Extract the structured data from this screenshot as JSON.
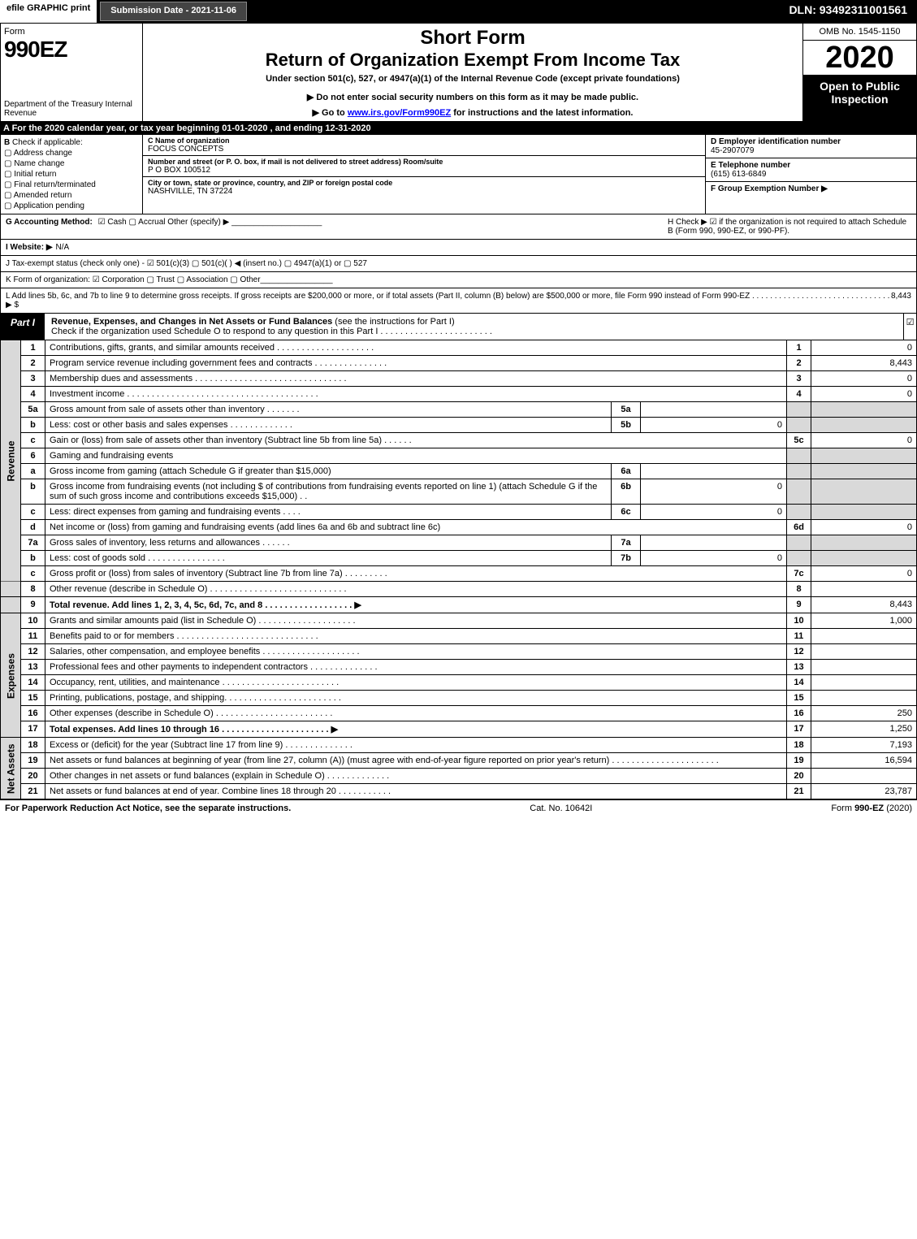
{
  "topbar": {
    "efile": "efile GRAPHIC print",
    "sub_date_lbl": "Submission Date - 2021-11-06",
    "dln": "DLN: 93492311001561"
  },
  "header": {
    "form_word": "Form",
    "form_num": "990EZ",
    "dept": "Department of the Treasury Internal Revenue",
    "short_form": "Short Form",
    "title": "Return of Organization Exempt From Income Tax",
    "under": "Under section 501(c), 527, or 4947(a)(1) of the Internal Revenue Code (except private foundations)",
    "do_not": "▶ Do not enter social security numbers on this form as it may be made public.",
    "go_to_pre": "▶ Go to ",
    "go_to_link": "www.irs.gov/Form990EZ",
    "go_to_post": " for instructions and the latest information.",
    "omb": "OMB No. 1545-1150",
    "year": "2020",
    "open_pub": "Open to Public Inspection"
  },
  "row_a": "A   For the 2020 calendar year, or tax year beginning 01-01-2020 , and ending 12-31-2020",
  "section_b": {
    "lbl": "B",
    "check_if": "Check if applicable:",
    "opts": [
      "Address change",
      "Name change",
      "Initial return",
      "Final return/terminated",
      "Amended return",
      "Application pending"
    ]
  },
  "org": {
    "c_lbl": "C Name of organization",
    "name": "FOCUS CONCEPTS",
    "addr_lbl": "Number and street (or P. O. box, if mail is not delivered to street address)     Room/suite",
    "addr": "P O BOX 100512",
    "city_lbl": "City or town, state or province, country, and ZIP or foreign postal code",
    "city": "NASHVILLE, TN  37224"
  },
  "right": {
    "d_lbl": "D Employer identification number",
    "ein": "45-2907079",
    "e_lbl": "E Telephone number",
    "phone": "(615) 613-6849",
    "f_lbl": "F Group Exemption Number  ▶"
  },
  "g": {
    "lbl": "G Accounting Method:",
    "opts": "☑ Cash   ▢ Accrual   Other (specify) ▶"
  },
  "h": {
    "text": "H  Check ▶ ☑ if the organization is not required to attach Schedule B (Form 990, 990-EZ, or 990-PF)."
  },
  "i": {
    "lbl": "I Website: ▶",
    "val": "N/A"
  },
  "j": {
    "text": "J Tax-exempt status (check only one) - ☑ 501(c)(3)  ▢ 501(c)(  ) ◀ (insert no.)  ▢ 4947(a)(1) or  ▢ 527"
  },
  "k": {
    "text": "K Form of organization:  ☑ Corporation   ▢ Trust   ▢ Association   ▢ Other"
  },
  "l": {
    "text": "L Add lines 5b, 6c, and 7b to line 9 to determine gross receipts. If gross receipts are $200,000 or more, or if total assets (Part II, column (B) below) are $500,000 or more, file Form 990 instead of Form 990-EZ  .  .  .  .  .  .  .  .  .  .  .  .  .  .  .  .  .  .  .  .  .  .  .  .  .  .  .  .  .  .  .  ▶ $ ",
    "amt": "8,443"
  },
  "part1": {
    "tab": "Part I",
    "title_b": "Revenue, Expenses, and Changes in Net Assets or Fund Balances",
    "title_rest": " (see the instructions for Part I)",
    "check_o": "Check if the organization used Schedule O to respond to any question in this Part I .  .  .  .  .  .  .  .  .  .  .  .  .  .  .  .  .  .  .  .  .  .  .",
    "check_mark": "☑"
  },
  "sides": {
    "revenue": "Revenue",
    "expenses": "Expenses",
    "netassets": "Net Assets"
  },
  "lines": {
    "l1": {
      "n": "1",
      "d": "Contributions, gifts, grants, and similar amounts received  .  .  .  .  .  .  .  .  .  .  .  .  .  .  .  .  .  .  .  .",
      "ln": "1",
      "amt": "0"
    },
    "l2": {
      "n": "2",
      "d": "Program service revenue including government fees and contracts  .  .  .  .  .  .  .  .  .  .  .  .  .  .  .",
      "ln": "2",
      "amt": "8,443"
    },
    "l3": {
      "n": "3",
      "d": "Membership dues and assessments  .  .  .  .  .  .  .  .  .  .  .  .  .  .  .  .  .  .  .  .  .  .  .  .  .  .  .  .  .  .  .",
      "ln": "3",
      "amt": "0"
    },
    "l4": {
      "n": "4",
      "d": "Investment income  .  .  .  .  .  .  .  .  .  .  .  .  .  .  .  .  .  .  .  .  .  .  .  .  .  .  .  .  .  .  .  .  .  .  .  .  .  .  .",
      "ln": "4",
      "amt": "0"
    },
    "l5a": {
      "n": "5a",
      "d": "Gross amount from sale of assets other than inventory  .  .  .  .  .  .  .",
      "mc": "5a",
      "ma": ""
    },
    "l5b": {
      "n": "b",
      "d": "Less: cost or other basis and sales expenses  .  .  .  .  .  .  .  .  .  .  .  .  .",
      "mc": "5b",
      "ma": "0"
    },
    "l5c": {
      "n": "c",
      "d": "Gain or (loss) from sale of assets other than inventory (Subtract line 5b from line 5a)  .  .  .  .  .  .",
      "ln": "5c",
      "amt": "0"
    },
    "l6": {
      "n": "6",
      "d": "Gaming and fundraising events"
    },
    "l6a": {
      "n": "a",
      "d": "Gross income from gaming (attach Schedule G if greater than $15,000)",
      "mc": "6a",
      "ma": ""
    },
    "l6b": {
      "n": "b",
      "d": "Gross income from fundraising events (not including $                    of contributions from fundraising events reported on line 1) (attach Schedule G if the sum of such gross income and contributions exceeds $15,000)   .  .",
      "mc": "6b",
      "ma": "0"
    },
    "l6c": {
      "n": "c",
      "d": "Less: direct expenses from gaming and fundraising events   .  .  .  .",
      "mc": "6c",
      "ma": "0"
    },
    "l6d": {
      "n": "d",
      "d": "Net income or (loss) from gaming and fundraising events (add lines 6a and 6b and subtract line 6c)",
      "ln": "6d",
      "amt": "0"
    },
    "l7a": {
      "n": "7a",
      "d": "Gross sales of inventory, less returns and allowances  .  .  .  .  .  .",
      "mc": "7a",
      "ma": ""
    },
    "l7b": {
      "n": "b",
      "d": "Less: cost of goods sold        .  .  .  .  .  .  .  .  .  .  .  .  .  .  .  .",
      "mc": "7b",
      "ma": "0"
    },
    "l7c": {
      "n": "c",
      "d": "Gross profit or (loss) from sales of inventory (Subtract line 7b from line 7a)  .  .  .  .  .  .  .  .  .",
      "ln": "7c",
      "amt": "0"
    },
    "l8": {
      "n": "8",
      "d": "Other revenue (describe in Schedule O)  .  .  .  .  .  .  .  .  .  .  .  .  .  .  .  .  .  .  .  .  .  .  .  .  .  .  .  .",
      "ln": "8",
      "amt": ""
    },
    "l9": {
      "n": "9",
      "d": "Total revenue. Add lines 1, 2, 3, 4, 5c, 6d, 7c, and 8  .  .  .  .  .  .  .  .  .  .  .  .  .  .  .  .  .  .    ▶",
      "ln": "9",
      "amt": "8,443",
      "bold": true
    },
    "l10": {
      "n": "10",
      "d": "Grants and similar amounts paid (list in Schedule O)  .  .  .  .  .  .  .  .  .  .  .  .  .  .  .  .  .  .  .  .",
      "ln": "10",
      "amt": "1,000"
    },
    "l11": {
      "n": "11",
      "d": "Benefits paid to or for members     .  .  .  .  .  .  .  .  .  .  .  .  .  .  .  .  .  .  .  .  .  .  .  .  .  .  .  .  .",
      "ln": "11",
      "amt": ""
    },
    "l12": {
      "n": "12",
      "d": "Salaries, other compensation, and employee benefits  .  .  .  .  .  .  .  .  .  .  .  .  .  .  .  .  .  .  .  .",
      "ln": "12",
      "amt": ""
    },
    "l13": {
      "n": "13",
      "d": "Professional fees and other payments to independent contractors  .  .  .  .  .  .  .  .  .  .  .  .  .  .",
      "ln": "13",
      "amt": ""
    },
    "l14": {
      "n": "14",
      "d": "Occupancy, rent, utilities, and maintenance  .  .  .  .  .  .  .  .  .  .  .  .  .  .  .  .  .  .  .  .  .  .  .  .",
      "ln": "14",
      "amt": ""
    },
    "l15": {
      "n": "15",
      "d": "Printing, publications, postage, and shipping.  .  .  .  .  .  .  .  .  .  .  .  .  .  .  .  .  .  .  .  .  .  .  .",
      "ln": "15",
      "amt": ""
    },
    "l16": {
      "n": "16",
      "d": "Other expenses (describe in Schedule O)    .  .  .  .  .  .  .  .  .  .  .  .  .  .  .  .  .  .  .  .  .  .  .  .",
      "ln": "16",
      "amt": "250"
    },
    "l17": {
      "n": "17",
      "d": "Total expenses. Add lines 10 through 16     .  .  .  .  .  .  .  .  .  .  .  .  .  .  .  .  .  .  .  .  .  .    ▶",
      "ln": "17",
      "amt": "1,250",
      "bold": true
    },
    "l18": {
      "n": "18",
      "d": "Excess or (deficit) for the year (Subtract line 17 from line 9)        .  .  .  .  .  .  .  .  .  .  .  .  .  .",
      "ln": "18",
      "amt": "7,193"
    },
    "l19": {
      "n": "19",
      "d": "Net assets or fund balances at beginning of year (from line 27, column (A)) (must agree with end-of-year figure reported on prior year's return)  .  .  .  .  .  .  .  .  .  .  .  .  .  .  .  .  .  .  .  .  .  .",
      "ln": "19",
      "amt": "16,594"
    },
    "l20": {
      "n": "20",
      "d": "Other changes in net assets or fund balances (explain in Schedule O)  .  .  .  .  .  .  .  .  .  .  .  .  .",
      "ln": "20",
      "amt": ""
    },
    "l21": {
      "n": "21",
      "d": "Net assets or fund balances at end of year. Combine lines 18 through 20  .  .  .  .  .  .  .  .  .  .  .",
      "ln": "21",
      "amt": "23,787"
    }
  },
  "footer": {
    "left": "For Paperwork Reduction Act Notice, see the separate instructions.",
    "mid": "Cat. No. 10642I",
    "right": "Form 990-EZ (2020)"
  }
}
